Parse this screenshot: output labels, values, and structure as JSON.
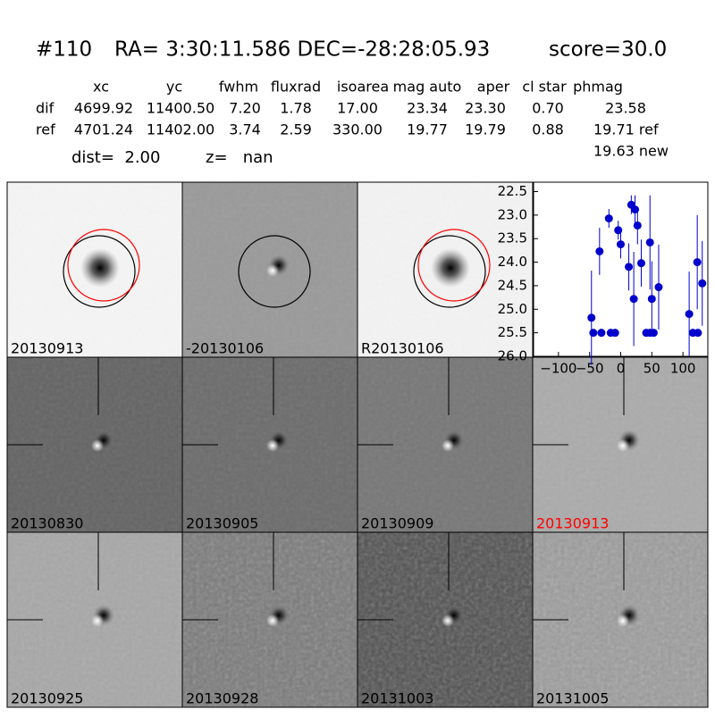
{
  "header": {
    "id": "#110",
    "coords": "RA= 3:30:11.586 DEC=-28:28:05.93",
    "score": "score=30.0"
  },
  "table": {
    "columns": [
      "xc",
      "yc",
      "fwhm",
      "fluxrad",
      "isoarea",
      "mag auto",
      "aper",
      "cl star",
      "phmag"
    ],
    "rows": [
      [
        "dif",
        "4699.92",
        "11400.50",
        "7.20",
        "1.78",
        "17.00",
        "23.34",
        "23.30",
        "0.70",
        "23.58"
      ],
      [
        "ref",
        "4701.24",
        "11402.00",
        "3.74",
        "2.59",
        "330.00",
        "19.77",
        "19.79",
        "0.88",
        "19.71 ref"
      ]
    ],
    "extra": "19.63 new"
  },
  "dist": "dist=  2.00",
  "z": "z=   nan",
  "stamps": [
    {
      "label": "20130913"
    },
    {
      "label": "-20130106"
    },
    {
      "label": "R20130106"
    },
    {
      "label": "20130830"
    },
    {
      "label": "20130905"
    },
    {
      "label": "20130909"
    },
    {
      "label": "20130913",
      "color": "#ff0000"
    },
    {
      "label": "20130925"
    },
    {
      "label": "20130928"
    },
    {
      "label": "20131003"
    },
    {
      "label": "20131005"
    }
  ],
  "chart_data": {
    "type": "errorbar",
    "color": "#0000cc",
    "x": [
      -47,
      -44,
      -34,
      -31,
      -19,
      -16,
      -9,
      -4,
      0,
      13,
      17,
      21,
      23,
      27,
      33,
      41,
      47,
      47,
      50,
      53,
      61,
      110,
      116,
      123,
      124,
      131
    ],
    "values": [
      25.18,
      25.5,
      23.77,
      25.5,
      23.07,
      25.5,
      25.5,
      23.32,
      23.62,
      24.1,
      22.78,
      24.78,
      22.88,
      23.22,
      24.02,
      25.5,
      23.58,
      25.5,
      24.78,
      25.5,
      24.53,
      25.1,
      25.5,
      24.0,
      25.5,
      24.45
    ],
    "errors": [
      1.0,
      0,
      0.5,
      0,
      0.2,
      0,
      0,
      0.2,
      0.3,
      0.5,
      0.2,
      1.0,
      0.3,
      0.4,
      0.5,
      0,
      1.0,
      0,
      0.8,
      0,
      0.9,
      0.9,
      0,
      1.0,
      0,
      0.9
    ],
    "xlim": [
      -140,
      140
    ],
    "ylim": [
      26.0,
      22.3
    ],
    "xticks": [
      {
        "value": -100,
        "label": "−100"
      },
      {
        "value": -50,
        "label": "−50"
      },
      0,
      50,
      100
    ],
    "yticks": [
      22.5,
      {
        "value": 23,
        "label": "23.0"
      },
      23.5,
      {
        "value": 24,
        "label": "24.0"
      },
      24.5,
      {
        "value": 25,
        "label": "25.0"
      },
      25.5,
      {
        "value": 26,
        "label": "26.0"
      }
    ]
  }
}
